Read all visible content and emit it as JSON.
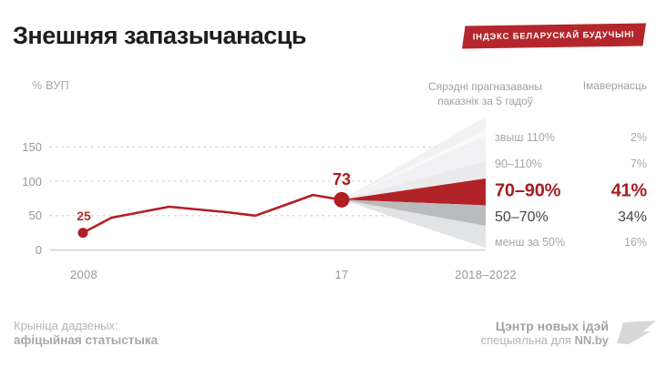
{
  "header": {
    "title": "Знешняя запазычанасць",
    "badge": "ІНДЭКС БЕЛАРУСКАЙ БУДУЧЫНІ"
  },
  "chart": {
    "unit_label": "% ВУП",
    "forecast_header_line1": "Сярэдні прагназаваны",
    "forecast_header_line2": "паказнік за 5 гадоў",
    "probability_header": "Імавернасць",
    "y_tick_labels": [
      "150",
      "100",
      "50",
      "0"
    ],
    "x_tick_labels": [
      "2008",
      "17",
      "2018–2022"
    ],
    "start_point_label": "25",
    "end_point_label": "73",
    "bands": [
      {
        "range": "звыш 110%",
        "probability": "2%"
      },
      {
        "range": "90–110%",
        "probability": "7%"
      },
      {
        "range": "70–90%",
        "probability": "41%"
      },
      {
        "range": "50–70%",
        "probability": "34%"
      },
      {
        "range": "менш за 50%",
        "probability": "16%"
      }
    ]
  },
  "chart_data": {
    "type": "line",
    "title": "Знешняя запазычанасць",
    "ylabel": "% ВУП",
    "x": [
      2008,
      2009,
      2010,
      2011,
      2012,
      2013,
      2014,
      2015,
      2016,
      2017
    ],
    "values": [
      25,
      47,
      55,
      63,
      59,
      55,
      50,
      65,
      80,
      73
    ],
    "labeled_points": [
      {
        "x": 2008,
        "value": 25
      },
      {
        "x": 2017,
        "value": 73
      }
    ],
    "y_ticks": [
      0,
      50,
      100,
      150
    ],
    "ylim": [
      0,
      150
    ],
    "grid": "dotted-horizontal",
    "forecast_fan": {
      "period": "2018–2022",
      "header": "Сярэдні прагназаваны паказнік за 5 гадоў",
      "probability_header": "Імавернасць",
      "bands": [
        {
          "range": "звыш 110%",
          "probability_pct": 2,
          "emphasis": "light"
        },
        {
          "range": "90–110%",
          "probability_pct": 7,
          "emphasis": "light"
        },
        {
          "range": "70–90%",
          "probability_pct": 41,
          "emphasis": "primary"
        },
        {
          "range": "50–70%",
          "probability_pct": 34,
          "emphasis": "dark"
        },
        {
          "range": "менш за 50%",
          "probability_pct": 16,
          "emphasis": "light"
        }
      ]
    }
  },
  "footer": {
    "source_label": "Крыніца дадзеных:",
    "source_name": "афіцыйная статыстыка",
    "org_name": "Цэнтр новых ідэй",
    "credit_prefix": "спецыяльна для ",
    "credit_site": "NN.by"
  },
  "colors": {
    "accent_red": "#b01f24",
    "badge_red": "#b4262b",
    "band_red": "#b22328",
    "band_gray": "#babbbd",
    "band_light_top": "#f0f0f2",
    "band_light_mid": "#e7e8ea",
    "band_light_bottom": "#dfe0e2",
    "muted_text": "#a7a7aa",
    "dark_text": "#454547",
    "axis_text": "#98989b",
    "title_text": "#1d1d1f"
  }
}
